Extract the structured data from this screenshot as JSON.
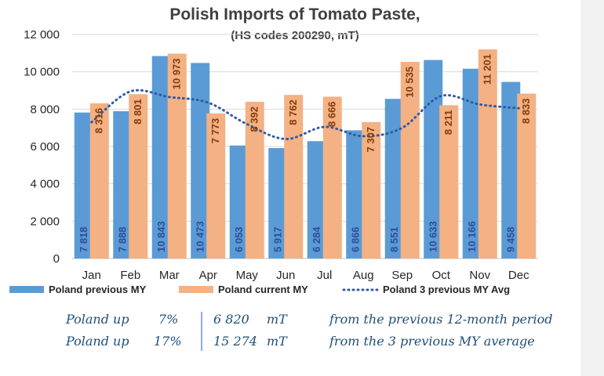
{
  "chart_data": {
    "type": "bar",
    "title": "Polish Imports of Tomato Paste,",
    "subtitle": "(HS codes 200290, mT)",
    "categories": [
      "Jan",
      "Feb",
      "Mar",
      "Apr",
      "May",
      "Jun",
      "Jul",
      "Aug",
      "Sep",
      "Oct",
      "Nov",
      "Dec"
    ],
    "series": [
      {
        "name": "Poland previous MY",
        "kind": "bar",
        "color": "#5b9bd5",
        "values": [
          7818,
          7888,
          10843,
          10473,
          6053,
          5917,
          6284,
          6866,
          8551,
          10633,
          10166,
          9458
        ],
        "labels": [
          "7 818",
          "7 888",
          "10 843",
          "10 473",
          "6 053",
          "5 917",
          "6 284",
          "6 866",
          "8 551",
          "10 633",
          "10 166",
          "9 458"
        ]
      },
      {
        "name": "Poland current MY",
        "kind": "bar",
        "color": "#f4b183",
        "values": [
          8316,
          8801,
          10973,
          7773,
          8392,
          8762,
          8666,
          7307,
          10535,
          8211,
          11201,
          8833
        ],
        "labels": [
          "8 316",
          "8 801",
          "10 973",
          "7 773",
          "8 392",
          "8 762",
          "8 666",
          "7 307",
          "10 535",
          "8 211",
          "11 201",
          "8 833"
        ]
      },
      {
        "name": "Poland 3 previous MY Avg",
        "kind": "line",
        "style": "dotted",
        "color": "#2e5aa8",
        "values": [
          7300,
          8950,
          8650,
          8350,
          7200,
          6400,
          7050,
          6550,
          7000,
          8700,
          8250,
          8050
        ]
      }
    ],
    "ylim": [
      0,
      12000
    ],
    "yticks": [
      0,
      2000,
      4000,
      6000,
      8000,
      10000,
      12000
    ],
    "ytick_labels": [
      "0",
      "2 000",
      "4 000",
      "6 000",
      "8 000",
      "10 000",
      "12 000"
    ],
    "legend": "bottom",
    "grid": true
  },
  "summary": {
    "rows": [
      {
        "subject": "Poland up",
        "percent": "7%",
        "amount": "6 820",
        "unit": "mT",
        "note": "from the previous 12-month period"
      },
      {
        "subject": "Poland up",
        "percent": "17%",
        "amount": "15 274",
        "unit": "mT",
        "note": "from the 3 previous MY average"
      }
    ]
  }
}
